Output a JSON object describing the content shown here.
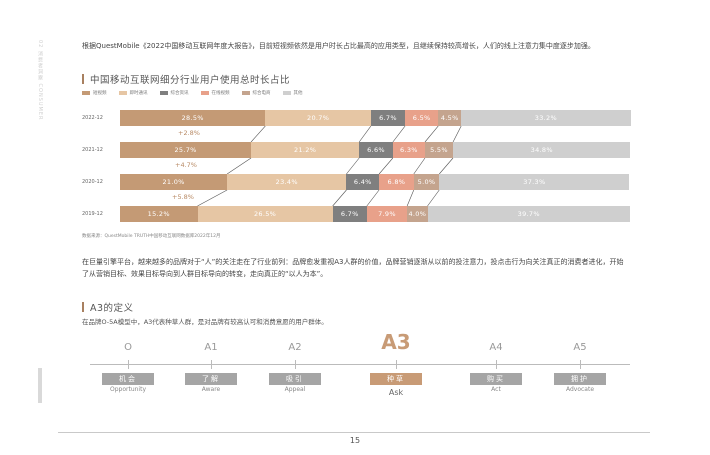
{
  "side": {
    "tab_top": "02 消费者洞察 CONSUMER",
    "tab_bottom": "三 品牌"
  },
  "intro_text": "根据QuestMobile《2022中国移动互联网年度大报告》，目前短视频依然是用户时长占比最高的应用类型，且继续保持较高增长，人们的线上注意力集中度逐步加强。",
  "chart_section": {
    "title": "中国移动互联网细分行业用户使用总时长占比",
    "source": "数据来源：QuestMobile TRUTH中国移动互联网数据库2022年12月"
  },
  "chart_data": {
    "type": "bar",
    "stacked": "100%",
    "orientation": "horizontal",
    "title": "中国移动互联网细分行业用户使用总时长占比",
    "categories": [
      "2022-12",
      "2021-12",
      "2020-12",
      "2019-12"
    ],
    "series": [
      {
        "name": "短视频",
        "color": "#c49a75",
        "values": [
          28.5,
          25.7,
          21.0,
          15.2
        ]
      },
      {
        "name": "即时通讯",
        "color": "#e6c6a4",
        "values": [
          20.7,
          21.2,
          23.4,
          26.5
        ]
      },
      {
        "name": "综合资讯",
        "color": "#7f7f7f",
        "values": [
          6.7,
          6.6,
          6.4,
          6.7
        ]
      },
      {
        "name": "在线视频",
        "color": "#e8a18a",
        "values": [
          6.5,
          6.3,
          6.8,
          7.9
        ]
      },
      {
        "name": "综合电商",
        "color": "#c4a48e",
        "values": [
          4.5,
          5.5,
          5.0,
          4.0
        ]
      },
      {
        "name": "其他",
        "color": "#cfcfcf",
        "values": [
          33.2,
          34.8,
          37.3,
          39.7
        ]
      }
    ],
    "value_labels": [
      [
        "28.5%",
        "20.7%",
        "6.7%",
        "6.5%",
        "4.5%",
        "33.2%"
      ],
      [
        "25.7%",
        "21.2%",
        "6.6%",
        "6.3%",
        "5.5%",
        "34.8%"
      ],
      [
        "21.0%",
        "23.4%",
        "6.4%",
        "6.8%",
        "5.0%",
        "37.3%"
      ],
      [
        "15.2%",
        "26.5%",
        "6.7%",
        "7.9%",
        "4.0%",
        "39.7%"
      ]
    ],
    "growth_labels": [
      "+2.8%",
      "+4.7%",
      "+5.8%"
    ],
    "xlim": [
      0,
      100
    ]
  },
  "paragraph2": "在巨量引擎平台，越来越多的品牌对于“人”的关注走在了行业前列：品牌愈发重视A3人群的价值，品牌营销逐渐从以前的投注意力，投点击行为向关注真正的消费者进化，开始了从营销目标、效果目标导向到人群目标导向的转变，走向真正的“以人为本”。",
  "a3_section": {
    "title": "A3的定义",
    "definition": "在品牌O-5A模型中，A3代表种草人群，是对品牌有较高认可和消费意愿的用户群体。",
    "stages": [
      {
        "code": "O",
        "label_cn": "机会",
        "label_en": "Opportunity",
        "active": false
      },
      {
        "code": "A1",
        "label_cn": "了解",
        "label_en": "Aware",
        "active": false
      },
      {
        "code": "A2",
        "label_cn": "吸引",
        "label_en": "Appeal",
        "active": false
      },
      {
        "code": "A3",
        "label_cn": "种草",
        "label_en": "Ask",
        "active": true
      },
      {
        "code": "A4",
        "label_cn": "购买",
        "label_en": "Act",
        "active": false
      },
      {
        "code": "A5",
        "label_cn": "拥护",
        "label_en": "Advocate",
        "active": false
      }
    ]
  },
  "page_number": "15"
}
